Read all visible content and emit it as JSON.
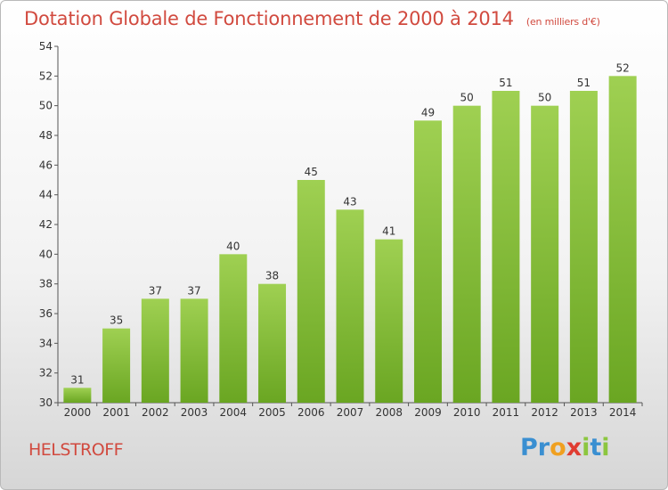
{
  "header": {
    "title": "Dotation Globale de Fonctionnement de 2000 à 2014",
    "unit": "(en milliers d'€)"
  },
  "footer": {
    "commune": "HELSTROFF",
    "logo_letters": [
      {
        "ch": "P",
        "color": "#3a8fd1"
      },
      {
        "ch": "r",
        "color": "#3a8fd1"
      },
      {
        "ch": "o",
        "color": "#f0a020"
      },
      {
        "ch": "x",
        "color": "#e03c31"
      },
      {
        "ch": "i",
        "color": "#8cc63f"
      },
      {
        "ch": "t",
        "color": "#3a8fd1"
      },
      {
        "ch": "i",
        "color": "#8cc63f"
      }
    ]
  },
  "chart_data": {
    "type": "bar",
    "title": "Dotation Globale de Fonctionnement de 2000 à 2014",
    "categories": [
      "2000",
      "2001",
      "2002",
      "2003",
      "2004",
      "2005",
      "2006",
      "2007",
      "2008",
      "2009",
      "2010",
      "2011",
      "2012",
      "2013",
      "2014"
    ],
    "values": [
      31,
      35,
      37,
      37,
      40,
      38,
      45,
      43,
      41,
      49,
      50,
      51,
      50,
      51,
      52
    ],
    "ylim": [
      30,
      54
    ],
    "yticks": [
      30,
      32,
      34,
      36,
      38,
      40,
      42,
      44,
      46,
      48,
      50,
      52,
      54
    ],
    "grid": false,
    "colors": {
      "bar_top": "#9fd052",
      "bar_bottom": "#6aa622",
      "axis": "#555555"
    }
  }
}
